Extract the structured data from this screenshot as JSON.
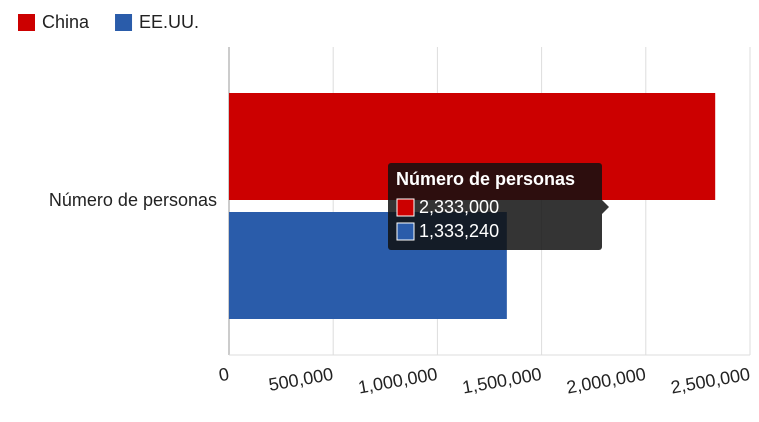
{
  "chart_data": {
    "type": "hbar",
    "categories": [
      "Número de personas"
    ],
    "series": [
      {
        "name": "China",
        "color": "#cc0000",
        "values": [
          2333000
        ],
        "value_labels": [
          "2,333,000"
        ]
      },
      {
        "name": "EE.UU.",
        "color": "#2a5caa",
        "values": [
          1333240
        ],
        "value_labels": [
          "1,333,240"
        ]
      }
    ],
    "xlim": [
      0,
      2500000
    ],
    "xticks": [
      0,
      {
        "value": 500000,
        "label": "500,000"
      },
      {
        "value": 1000000,
        "label": "1,000,000"
      },
      {
        "value": 1500000,
        "label": "1,500,000"
      },
      {
        "value": 2000000,
        "label": "2,000,000"
      },
      {
        "value": 2500000,
        "label": "2,500,000"
      }
    ],
    "grid": true,
    "legend": "top-left"
  }
}
